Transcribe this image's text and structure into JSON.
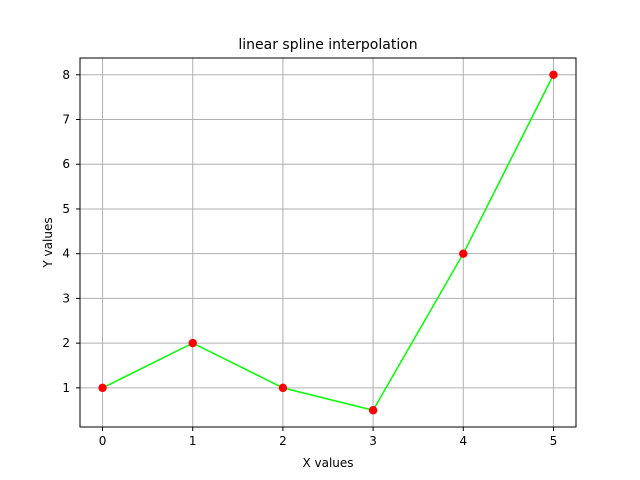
{
  "chart_data": {
    "type": "line",
    "title": "linear spline interpolation",
    "xlabel": "X values",
    "ylabel": "Y values",
    "x": [
      0,
      1,
      2,
      3,
      4,
      5
    ],
    "series": [
      {
        "values": [
          1,
          2,
          1,
          0.5,
          4,
          8
        ],
        "line_color": "#00ff00",
        "marker_color": "#ff0000"
      }
    ],
    "xlim": [
      -0.25,
      5.25
    ],
    "ylim": [
      0.125,
      8.375
    ],
    "xticks": [
      "0",
      "1",
      "2",
      "3",
      "4",
      "5"
    ],
    "yticks": [
      "1",
      "2",
      "3",
      "4",
      "5",
      "6",
      "7",
      "8"
    ],
    "grid": true,
    "grid_color": "#b0b0b0"
  }
}
